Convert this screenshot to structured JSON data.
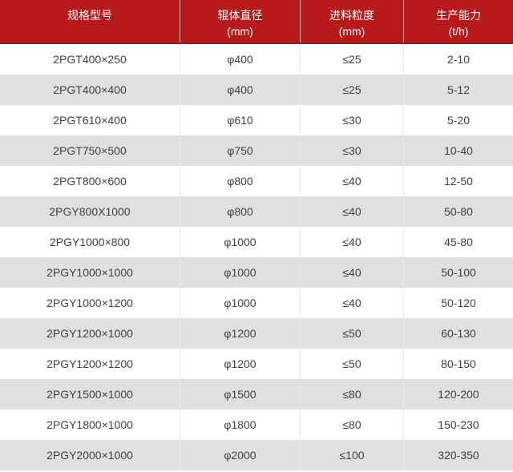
{
  "colors": {
    "header_bg": "#b8191b",
    "header_border_bottom": "#a81416",
    "header_text": "#ffffff",
    "row_bg": "#ffffff",
    "row_alt_bg": "#e0e0e0",
    "body_text": "#404040",
    "grid_line": "#e9e9e9"
  },
  "chart_data": {
    "type": "table",
    "columns": [
      {
        "label": "规格型号",
        "unit": ""
      },
      {
        "label": "辊体直径",
        "unit": "(mm)"
      },
      {
        "label": "进料粒度",
        "unit": "(mm)"
      },
      {
        "label": "生产能力",
        "unit": "(t/h)"
      }
    ],
    "rows": [
      [
        "2PGT400×250",
        "φ400",
        "≤25",
        "2-10"
      ],
      [
        "2PGT400×400",
        "φ400",
        "≤25",
        "5-12"
      ],
      [
        "2PGT610×400",
        "φ610",
        "≤30",
        "5-20"
      ],
      [
        "2PGT750×500",
        "φ750",
        "≤30",
        "10-40"
      ],
      [
        "2PGT800×600",
        "φ800",
        "≤40",
        "12-50"
      ],
      [
        "2PGY800X1000",
        "φ800",
        "≤40",
        "50-80"
      ],
      [
        "2PGY1000×800",
        "φ1000",
        "≤40",
        "45-80"
      ],
      [
        "2PGY1000×1000",
        "φ1000",
        "≤40",
        "50-100"
      ],
      [
        "2PGY1000×1200",
        "φ1000",
        "≤40",
        "50-120"
      ],
      [
        "2PGY1200×1000",
        "φ1200",
        "≤50",
        "60-130"
      ],
      [
        "2PGY1200×1200",
        "φ1200",
        "≤50",
        "80-150"
      ],
      [
        "2PGY1500×1000",
        "φ1500",
        "≤80",
        "120-200"
      ],
      [
        "2PGY1800×1000",
        "φ1800",
        "≤80",
        "150-230"
      ],
      [
        "2PGY2000×1000",
        "φ2000",
        "≤100",
        "320-350"
      ]
    ]
  }
}
